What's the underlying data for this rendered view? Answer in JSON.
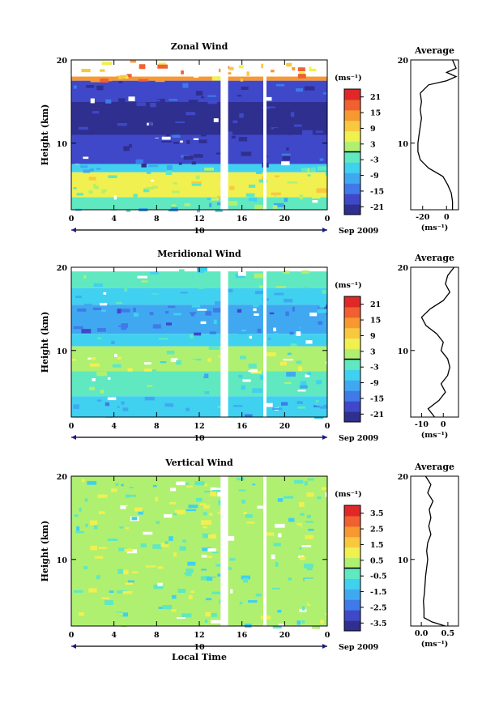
{
  "chart_data": [
    {
      "type": "heatmap",
      "title": "Zonal Wind",
      "ylabel": "Height (km)",
      "ylim": [
        2,
        20
      ],
      "yticks": [
        "10",
        "20"
      ],
      "xlim": [
        0,
        24
      ],
      "xticks": [
        "0",
        "4",
        "8",
        "12",
        "16",
        "20",
        "0"
      ],
      "date_bar": "10",
      "date_suffix": "Sep 2009",
      "colorbar": {
        "unit": "(ms⁻¹)",
        "range": [
          -24,
          24
        ],
        "ticks": [
          "21",
          "15",
          "9",
          "3",
          "-3",
          "-9",
          "-15",
          "-21"
        ],
        "colors": [
          "#2f2f8f",
          "#3f48c8",
          "#3f7ae8",
          "#40a8f0",
          "#40d0f0",
          "#60e8c0",
          "#b0f070",
          "#f0f050",
          "#f8c840",
          "#f89830",
          "#f06030",
          "#e02828"
        ]
      },
      "data_gaps_hours": [
        [
          14.0,
          14.7
        ],
        [
          18.0,
          18.3
        ]
      ],
      "bands": [
        {
          "from": 17.5,
          "to": 18.0,
          "value": 12
        },
        {
          "from": 15.0,
          "to": 17.5,
          "value": -18
        },
        {
          "from": 11.0,
          "to": 15.0,
          "value": -22
        },
        {
          "from": 7.5,
          "to": 11.0,
          "value": -20
        },
        {
          "from": 6.5,
          "to": 7.5,
          "value": -5
        },
        {
          "from": 3.5,
          "to": 6.5,
          "value": 4
        },
        {
          "from": 2.0,
          "to": 3.5,
          "value": -4
        }
      ],
      "profile": {
        "title": "Average",
        "xlabel": "(ms⁻¹)",
        "xlim": [
          -30,
          10
        ],
        "xticks": [
          "-20",
          "0"
        ],
        "yticks": [
          "10",
          "20"
        ],
        "height": [
          2,
          3,
          4,
          5,
          6,
          7,
          8,
          9,
          10,
          11,
          12,
          13,
          14,
          15,
          16,
          17,
          17.5,
          18,
          18.5,
          19,
          20
        ],
        "value": [
          5,
          5,
          4,
          1,
          -3,
          -15,
          -22,
          -24,
          -24,
          -23,
          -22,
          -21,
          -22,
          -21,
          -22,
          -15,
          0,
          8,
          0,
          8,
          5
        ]
      }
    },
    {
      "type": "heatmap",
      "title": "Meridional Wind",
      "ylabel": "Height (km)",
      "ylim": [
        2,
        20
      ],
      "yticks": [
        "10",
        "20"
      ],
      "xlim": [
        0,
        24
      ],
      "xticks": [
        "0",
        "4",
        "8",
        "12",
        "16",
        "20",
        "0"
      ],
      "date_bar": "10",
      "date_suffix": "Sep 2009",
      "colorbar": {
        "unit": "(ms⁻¹)",
        "range": [
          -24,
          24
        ],
        "ticks": [
          "21",
          "15",
          "9",
          "3",
          "-3",
          "-9",
          "-15",
          "-21"
        ],
        "colors": [
          "#2f2f8f",
          "#3f48c8",
          "#3f7ae8",
          "#40a8f0",
          "#40d0f0",
          "#60e8c0",
          "#b0f070",
          "#f0f050",
          "#f8c840",
          "#f89830",
          "#f06030",
          "#e02828"
        ]
      },
      "data_gaps_hours": [
        [
          14.0,
          14.7
        ],
        [
          18.0,
          18.3
        ]
      ],
      "bands": [
        {
          "from": 17.5,
          "to": 19.5,
          "value": -2
        },
        {
          "from": 15.5,
          "to": 17.5,
          "value": -6
        },
        {
          "from": 12.0,
          "to": 15.5,
          "value": -12
        },
        {
          "from": 10.5,
          "to": 12.0,
          "value": -6
        },
        {
          "from": 7.5,
          "to": 10.5,
          "value": 1
        },
        {
          "from": 4.5,
          "to": 7.5,
          "value": -3
        },
        {
          "from": 2.0,
          "to": 4.5,
          "value": -8
        }
      ],
      "profile": {
        "title": "Average",
        "xlabel": "(ms⁻¹)",
        "xlim": [
          -15,
          7
        ],
        "xticks": [
          "-10",
          "0"
        ],
        "yticks": [
          "10",
          "20"
        ],
        "height": [
          2,
          3,
          4,
          5,
          6,
          7,
          8,
          9,
          10,
          11,
          12,
          13,
          14,
          15,
          16,
          17,
          18,
          19,
          20
        ],
        "value": [
          -4,
          -7,
          -2,
          1,
          -1,
          2,
          3,
          2,
          -1,
          0,
          -3,
          -8,
          -10,
          -6,
          0,
          3,
          1,
          2,
          5
        ]
      }
    },
    {
      "type": "heatmap",
      "title": "Vertical Wind",
      "ylabel": "Height (km)",
      "xlabel": "Local Time",
      "ylim": [
        2,
        20
      ],
      "yticks": [
        "10",
        "20"
      ],
      "xlim": [
        0,
        24
      ],
      "xticks": [
        "0",
        "4",
        "8",
        "12",
        "16",
        "20",
        "0"
      ],
      "date_bar": "10",
      "date_suffix": "Sep 2009",
      "colorbar": {
        "unit": "(ms⁻¹)",
        "range": [
          -4,
          4
        ],
        "ticks": [
          "3.5",
          "2.5",
          "1.5",
          "0.5",
          "-0.5",
          "-1.5",
          "-2.5",
          "-3.5"
        ],
        "colors": [
          "#2f2f8f",
          "#3f48c8",
          "#3f7ae8",
          "#40a8f0",
          "#40d0f0",
          "#60e8c0",
          "#b0f070",
          "#f0f050",
          "#f8c840",
          "#f89830",
          "#f06030",
          "#e02828"
        ]
      },
      "data_gaps_hours": [
        [
          14.0,
          14.7
        ],
        [
          18.0,
          18.3
        ]
      ],
      "bands": [
        {
          "from": 2.0,
          "to": 20.0,
          "value": 0.1
        }
      ],
      "profile": {
        "title": "Average",
        "xlabel": "(ms⁻¹)",
        "xlim": [
          -0.2,
          0.7
        ],
        "xticks": [
          "0.0",
          "0.5"
        ],
        "yticks": [
          "10",
          "20"
        ],
        "height": [
          2,
          2.5,
          3,
          4,
          5,
          6,
          7,
          8,
          9,
          10,
          11,
          12,
          13,
          14,
          15,
          16,
          17,
          18,
          19,
          20
        ],
        "value": [
          0.45,
          0.2,
          0.05,
          0.05,
          0.04,
          0.06,
          0.07,
          0.08,
          0.1,
          0.12,
          0.1,
          0.12,
          0.18,
          0.14,
          0.18,
          0.15,
          0.22,
          0.12,
          0.18,
          0.08
        ]
      }
    }
  ]
}
